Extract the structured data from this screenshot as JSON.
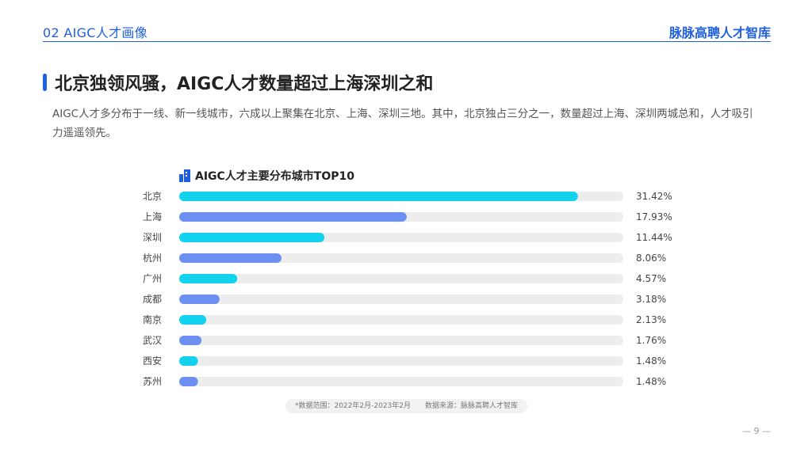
{
  "header": {
    "section": "02 AIGC人才画像",
    "brand": "脉脉高聘人才智库"
  },
  "title": "北京独领风骚，AIGC人才数量超过上海深圳之和",
  "description": "AIGC人才多分布于一线、新一线城市，六成以上聚集在北京、上海、深圳三地。其中，北京独占三分之一，数量超过上海、深圳两城总和，人才吸引力遥遥领先。",
  "chart_data": {
    "type": "bar",
    "orientation": "horizontal",
    "title": "AIGC人才主要分布城市TOP10",
    "categories": [
      "北京",
      "上海",
      "深圳",
      "杭州",
      "广州",
      "成都",
      "南京",
      "武汉",
      "西安",
      "苏州"
    ],
    "values": [
      31.42,
      17.93,
      11.44,
      8.06,
      4.57,
      3.18,
      2.13,
      1.76,
      1.48,
      1.48
    ],
    "value_labels": [
      "31.42%",
      "17.93%",
      "11.44%",
      "8.06%",
      "4.57%",
      "3.18%",
      "2.13%",
      "1.76%",
      "1.48%",
      "1.48%"
    ],
    "xlim": [
      0,
      35
    ],
    "bar_colors": [
      "#12d2ee",
      "#6d8ff2",
      "#12d2ee",
      "#6d8ff2",
      "#12d2ee",
      "#6d8ff2",
      "#12d2ee",
      "#6d8ff2",
      "#12d2ee",
      "#6d8ff2"
    ],
    "track_color": "#ededed"
  },
  "footer": {
    "range": "*数据范围：2022年2月-2023年2月",
    "source": "数据来源：脉脉高聘人才智库"
  },
  "page": "— 9 —",
  "colors": {
    "accent": "#1f5fe0"
  }
}
